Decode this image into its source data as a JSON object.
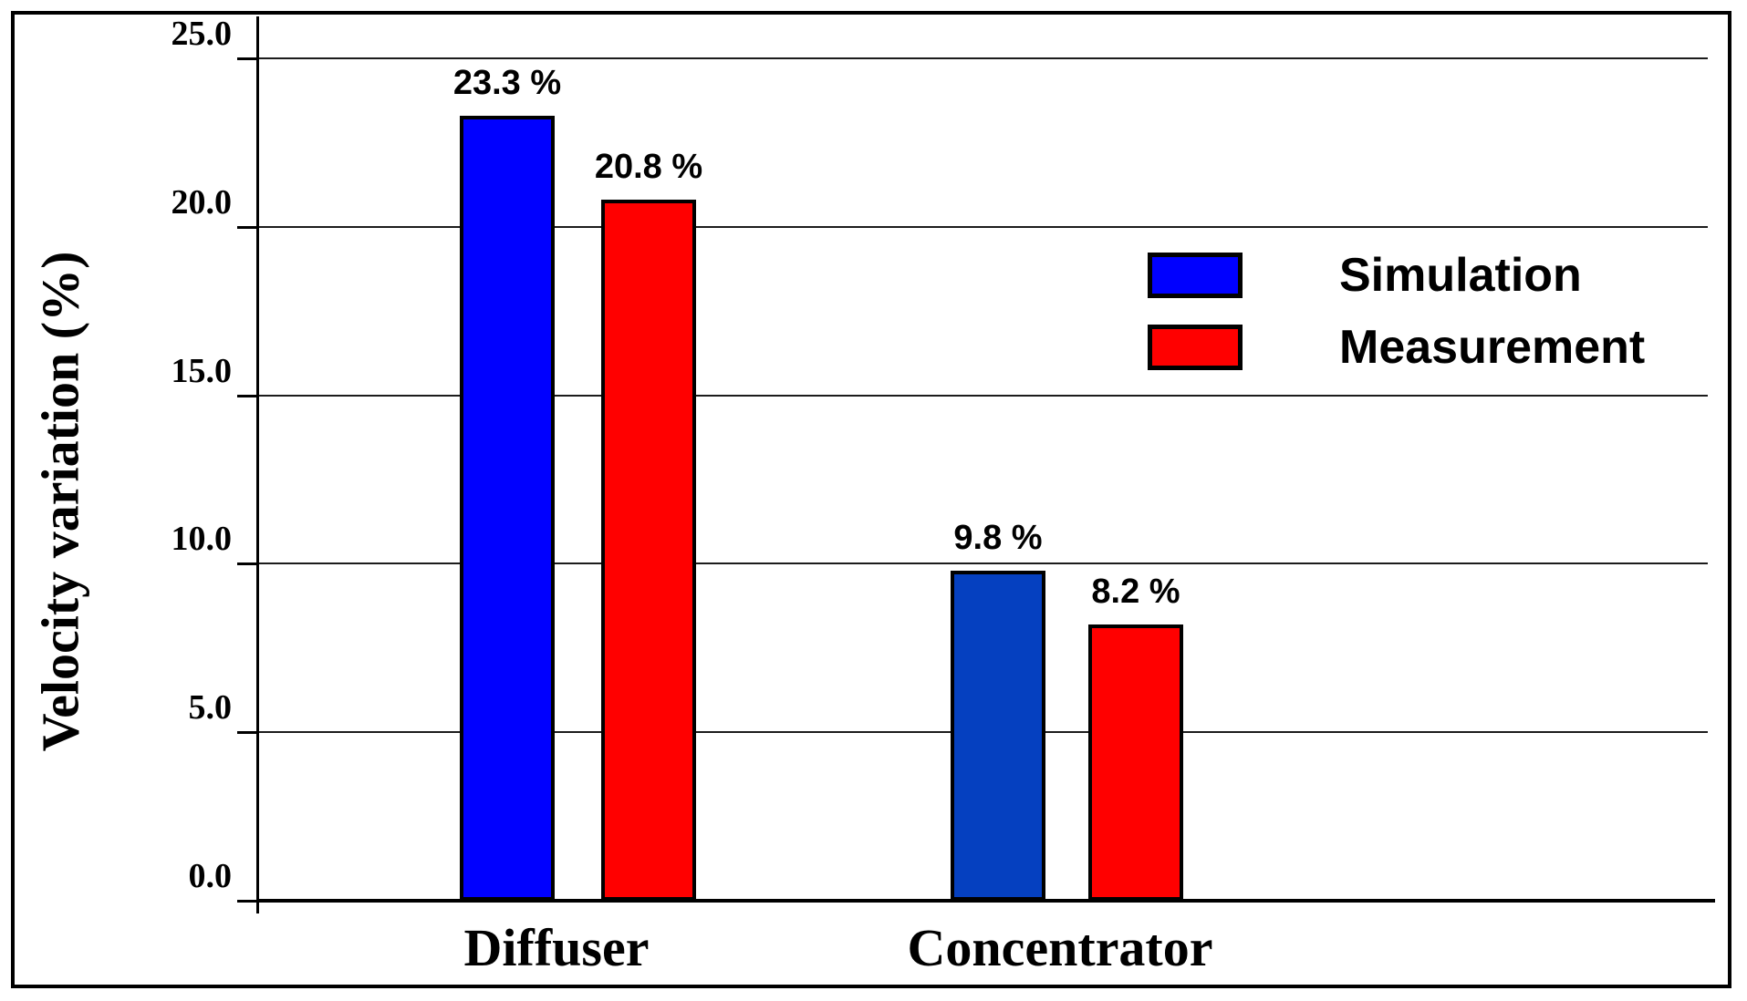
{
  "figure": {
    "background_color": "#ffffff",
    "frame_border_color": "#000000",
    "gridline_color": "#1c1c1c",
    "axis_color": "#000000",
    "text_color": "#000000"
  },
  "chart_data": {
    "type": "bar",
    "title": "",
    "xlabel": "",
    "ylabel": "Velocity variation (%)",
    "ylim": [
      0,
      25
    ],
    "grid": "horizontal",
    "legend_position": "upper-right-inside",
    "categories": [
      "Diffuser",
      "Concentrator"
    ],
    "yticks": [
      {
        "value": 0,
        "label": "0.0"
      },
      {
        "value": 5,
        "label": "5.0"
      },
      {
        "value": 10,
        "label": "10.0"
      },
      {
        "value": 15,
        "label": "15.0"
      },
      {
        "value": 20,
        "label": "20.0"
      },
      {
        "value": 25,
        "label": "25.0"
      }
    ],
    "series": [
      {
        "name": "Simulation",
        "values": [
          23.3,
          9.8
        ],
        "value_labels": [
          "23.3 %",
          "9.8 %"
        ],
        "legend_color": "#0000ff",
        "bar_colors": [
          "#0000ff",
          "#0540c0"
        ]
      },
      {
        "name": "Measurement",
        "values": [
          20.8,
          8.2
        ],
        "value_labels": [
          "20.8 %",
          "8.2 %"
        ],
        "legend_color": "#ff0000",
        "bar_colors": [
          "#ff0000",
          "#ff0000"
        ]
      }
    ]
  }
}
